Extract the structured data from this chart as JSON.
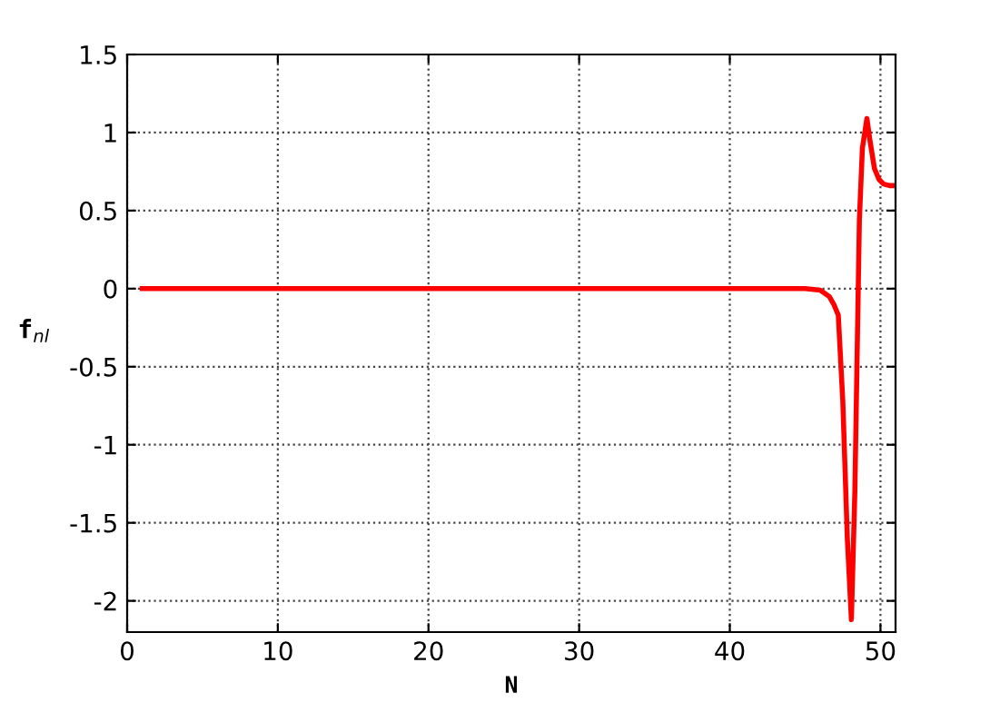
{
  "chart_data": {
    "type": "line",
    "xlabel": "N",
    "ylabel": "f$_{nl}$",
    "xlim": [
      0,
      51
    ],
    "ylim": [
      -2.2,
      1.5
    ],
    "xticks": [
      0,
      10,
      20,
      30,
      40,
      50
    ],
    "yticks": [
      -2,
      -1.5,
      -1,
      -0.5,
      0,
      0.5,
      1,
      1.5
    ],
    "grid": true,
    "legend": false,
    "marker": "none",
    "line_style": "solid",
    "series": [
      {
        "color": "#ff0000",
        "x": [
          1,
          10,
          20,
          30,
          40,
          45,
          46,
          46.6,
          46.9,
          47.2,
          47.5,
          47.8,
          48.07,
          48.3,
          48.4,
          48.6,
          48.8,
          49.1,
          49.3,
          49.6,
          49.9,
          50.2,
          50.6,
          51
        ],
        "values": [
          0,
          0,
          0,
          0,
          0,
          0,
          -0.01,
          -0.05,
          -0.1,
          -0.17,
          -0.72,
          -1.6,
          -2.12,
          -1.3,
          -0.72,
          0.44,
          0.9,
          1.09,
          0.95,
          0.77,
          0.7,
          0.67,
          0.66,
          0.66
        ]
      }
    ]
  }
}
